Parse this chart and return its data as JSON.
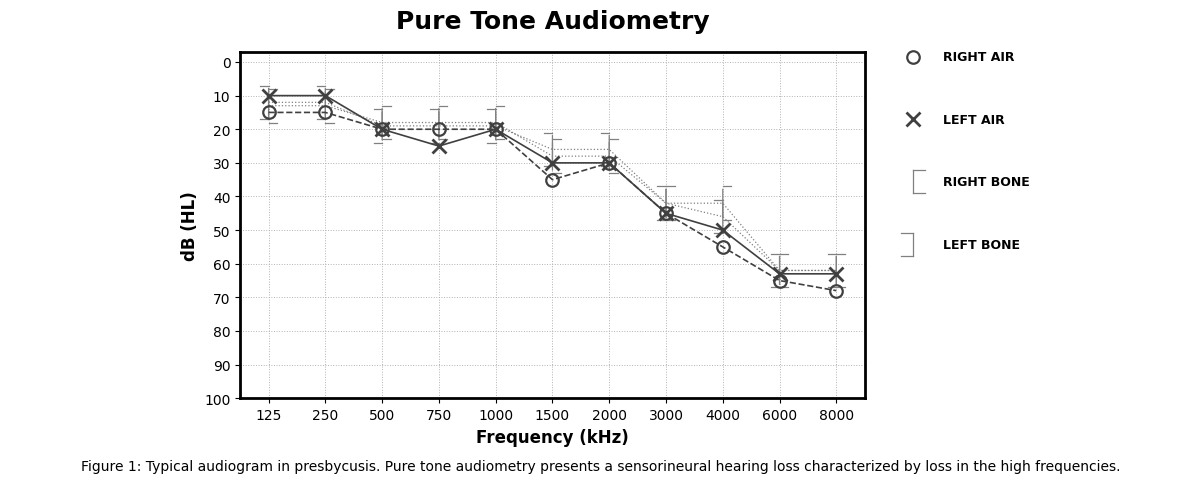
{
  "title": "Pure Tone Audiometry",
  "xlabel": "Frequency (kHz)",
  "ylabel": "dB (HL)",
  "caption": "Figure 1: Typical audiogram in presbycusis. Pure tone audiometry presents a sensorineural hearing loss characterized by loss in the high frequencies.",
  "freq_labels": [
    "125",
    "250",
    "500",
    "750",
    "1000",
    "1500",
    "2000",
    "3000",
    "4000",
    "6000",
    "8000"
  ],
  "right_air_y": [
    15,
    15,
    20,
    20,
    20,
    35,
    30,
    45,
    55,
    65,
    68
  ],
  "left_air_y": [
    10,
    10,
    20,
    25,
    20,
    30,
    30,
    45,
    50,
    63,
    63
  ],
  "right_bone_y": [
    13,
    13,
    18,
    18,
    18,
    28,
    28,
    42,
    42,
    62,
    62
  ],
  "left_bone_y": [
    12,
    12,
    19,
    19,
    19,
    26,
    26,
    42,
    46,
    62,
    62
  ],
  "yticks": [
    0,
    10,
    20,
    30,
    40,
    50,
    60,
    70,
    80,
    90,
    100
  ],
  "line_color": "#404040",
  "bone_color": "#808080",
  "bg_color": "#ffffff",
  "grid_color": "#aaaaaa",
  "title_fontsize": 18,
  "label_fontsize": 12,
  "tick_fontsize": 10,
  "caption_fontsize": 10,
  "legend_fontsize": 9
}
